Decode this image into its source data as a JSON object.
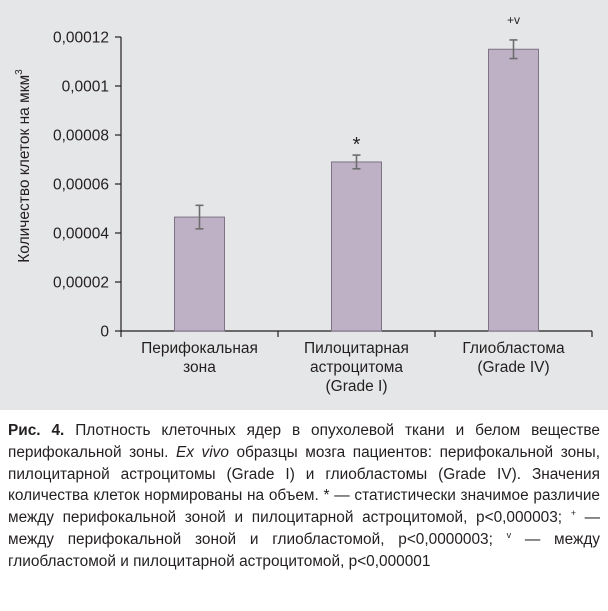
{
  "colors": {
    "panel_background": "#e5e6e7",
    "bar_fill": "#beb1c6",
    "bar_stroke": "#7e7386",
    "axis": "#231f20",
    "error_bar": "#6d6d6d"
  },
  "chart_data": {
    "type": "bar",
    "categories": [
      [
        "Перифокальная",
        "зона"
      ],
      [
        "Пилоцитарная",
        "астроцитома",
        "(Grade I)"
      ],
      [
        "Глиобластома",
        "(Grade IV)"
      ]
    ],
    "values": [
      4.65e-05,
      6.9e-05,
      0.000115
    ],
    "errors": [
      4.8e-06,
      2.8e-06,
      3.8e-06
    ],
    "significance_marks": [
      "",
      "*",
      "+v"
    ],
    "ylabel": "Количество клеток на мкм",
    "ylabel_superscript": "3",
    "ylim": [
      0,
      0.00012
    ],
    "yticks": [
      0,
      2e-05,
      4e-05,
      6e-05,
      8e-05,
      0.0001,
      0.00012
    ],
    "ytick_labels": [
      "0",
      "0,00002",
      "0,00004",
      "0,00006",
      "0,00008",
      "0,0001",
      "0,00012"
    ],
    "grid": false,
    "legend": false
  },
  "caption": {
    "label": "Рис. 4.",
    "part1": " Плотность клеточных ядер в опухолевой ткани и белом веществе перифокальной зоны. ",
    "italic": "Ex vivo",
    "part2": " образцы мозга пациентов: перифокальной зоны, пилоцитарной астроцитомы (Grade I) и глиобластомы (Grade IV). Значения количества клеток нормированы на объем. * — статистически значимое различие между перифокальной зоной и пилоцитарной астроцитомой, p<0,000003; ",
    "sup_plus": "+",
    "part3": " — между перифокальной зоной и глиобластомой, p<0,0000003; ",
    "sup_v": "v",
    "part4": " — между глиобластомой и пилоцитарной астроцитомой, p<0,000001"
  }
}
